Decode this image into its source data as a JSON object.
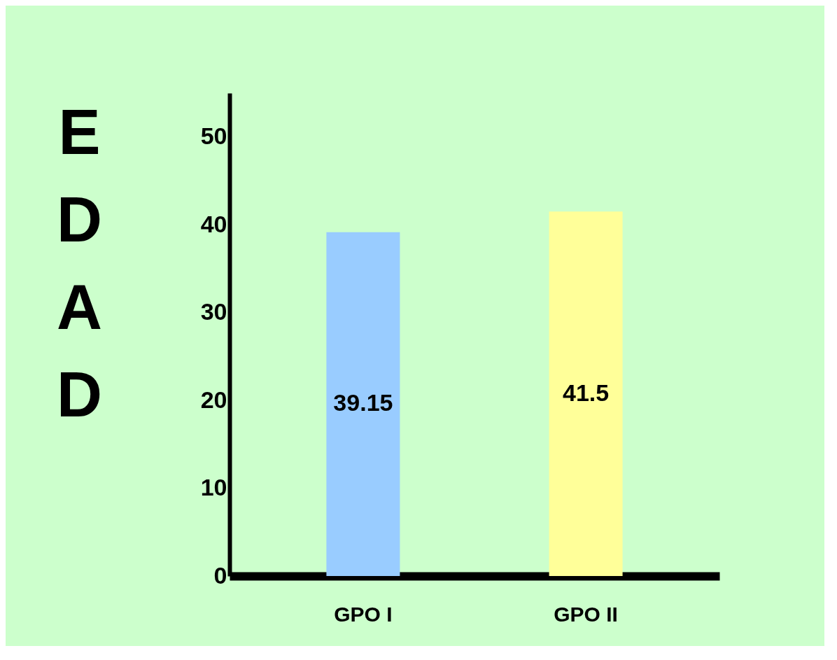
{
  "chart_data": {
    "type": "bar",
    "ylabel": "EDAD",
    "categories": [
      "GPO  I",
      "GPO  II"
    ],
    "values": [
      39.15,
      41.5
    ],
    "colors": [
      "#99ccff",
      "#ffff99"
    ],
    "ylim": [
      0,
      55
    ],
    "yticks": [
      0,
      10,
      20,
      30,
      40,
      50
    ],
    "data_labels": true,
    "grid": false
  }
}
